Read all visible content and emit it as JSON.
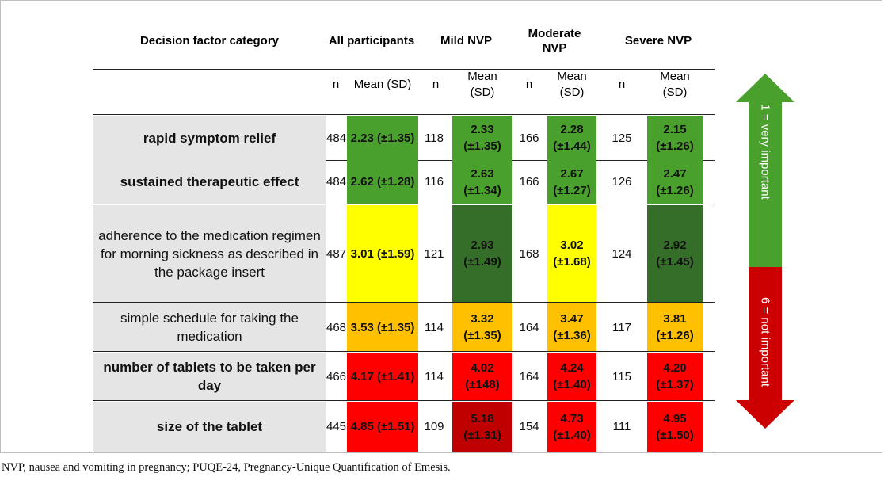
{
  "table": {
    "headers": {
      "category": "Decision factor category",
      "all": "All participants",
      "mild": "Mild NVP",
      "moderate_line1": "Moderate",
      "moderate_line2": "NVP",
      "severe": "Severe NVP"
    },
    "sub": {
      "n": "n",
      "mean_sd": "Mean (SD)",
      "mean": "Mean",
      "sd": "(SD)"
    },
    "colors": {
      "green": "#4aa02c",
      "dark_green": "#356e28",
      "yellow": "#ffff00",
      "orange": "#ffc000",
      "red": "#ff0000",
      "dark_red": "#c00000",
      "category_bg": "#e5e5e5"
    },
    "rows": [
      {
        "category": "rapid symptom relief",
        "all_n": "484",
        "all_mean": "2.23 (±1.35)",
        "mild_n": "118",
        "mild_mean": "2.33",
        "mild_sd": "(±1.35)",
        "mod_n": "166",
        "mod_mean": "2.28",
        "mod_sd": "(±1.44)",
        "sev_n": "125",
        "sev_mean": "2.15",
        "sev_sd": "(±1.26)"
      },
      {
        "category": "sustained therapeutic effect",
        "all_n": "484",
        "all_mean": "2.62 (±1.28)",
        "mild_n": "116",
        "mild_mean": "2.63",
        "mild_sd": "(±1.34)",
        "mod_n": "166",
        "mod_mean": "2.67",
        "mod_sd": "(±1.27)",
        "sev_n": "126",
        "sev_mean": "2.47",
        "sev_sd": "(±1.26)"
      },
      {
        "category": "adherence to the medication regimen for morning sickness as described in the package insert",
        "all_n": "487",
        "all_mean": "3.01 (±1.59)",
        "mild_n": "121",
        "mild_mean": "2.93",
        "mild_sd": "(±1.49)",
        "mod_n": "168",
        "mod_mean": "3.02",
        "mod_sd": "(±1.68)",
        "sev_n": "124",
        "sev_mean": "2.92",
        "sev_sd": "(±1.45)"
      },
      {
        "category": "simple schedule for taking the medication",
        "all_n": "468",
        "all_mean": "3.53 (±1.35)",
        "mild_n": "114",
        "mild_mean": "3.32",
        "mild_sd": "(±1.35)",
        "mod_n": "164",
        "mod_mean": "3.47",
        "mod_sd": "(±1.36)",
        "sev_n": "117",
        "sev_mean": "3.81",
        "sev_sd": "(±1.26)"
      },
      {
        "category": "number of tablets to be taken per day",
        "all_n": "466",
        "all_mean": "4.17 (±1.41)",
        "mild_n": "114",
        "mild_mean": "4.02",
        "mild_sd": "(±148)",
        "mod_n": "164",
        "mod_mean": "4.24",
        "mod_sd": "(±1.40)",
        "sev_n": "115",
        "sev_mean": "4.20",
        "sev_sd": "(±1.37)"
      },
      {
        "category": "size of the tablet",
        "all_n": "445",
        "all_mean": "4.85 (±1.51)",
        "mild_n": "109",
        "mild_mean": "5.18",
        "mild_sd": "(±1.31)",
        "mod_n": "154",
        "mod_mean": "4.73",
        "mod_sd": "(±1.40)",
        "sev_n": "111",
        "sev_mean": "4.95",
        "sev_sd": "(±1.50)"
      }
    ]
  },
  "scale": {
    "top_label": "1 = very important",
    "bottom_label": "6 = not important",
    "top_color": "#4aa02c",
    "bottom_color": "#cc0000"
  },
  "footnote": "NVP, nausea and vomiting in pregnancy; PUQE-24, Pregnancy-Unique Quantification of Emesis."
}
